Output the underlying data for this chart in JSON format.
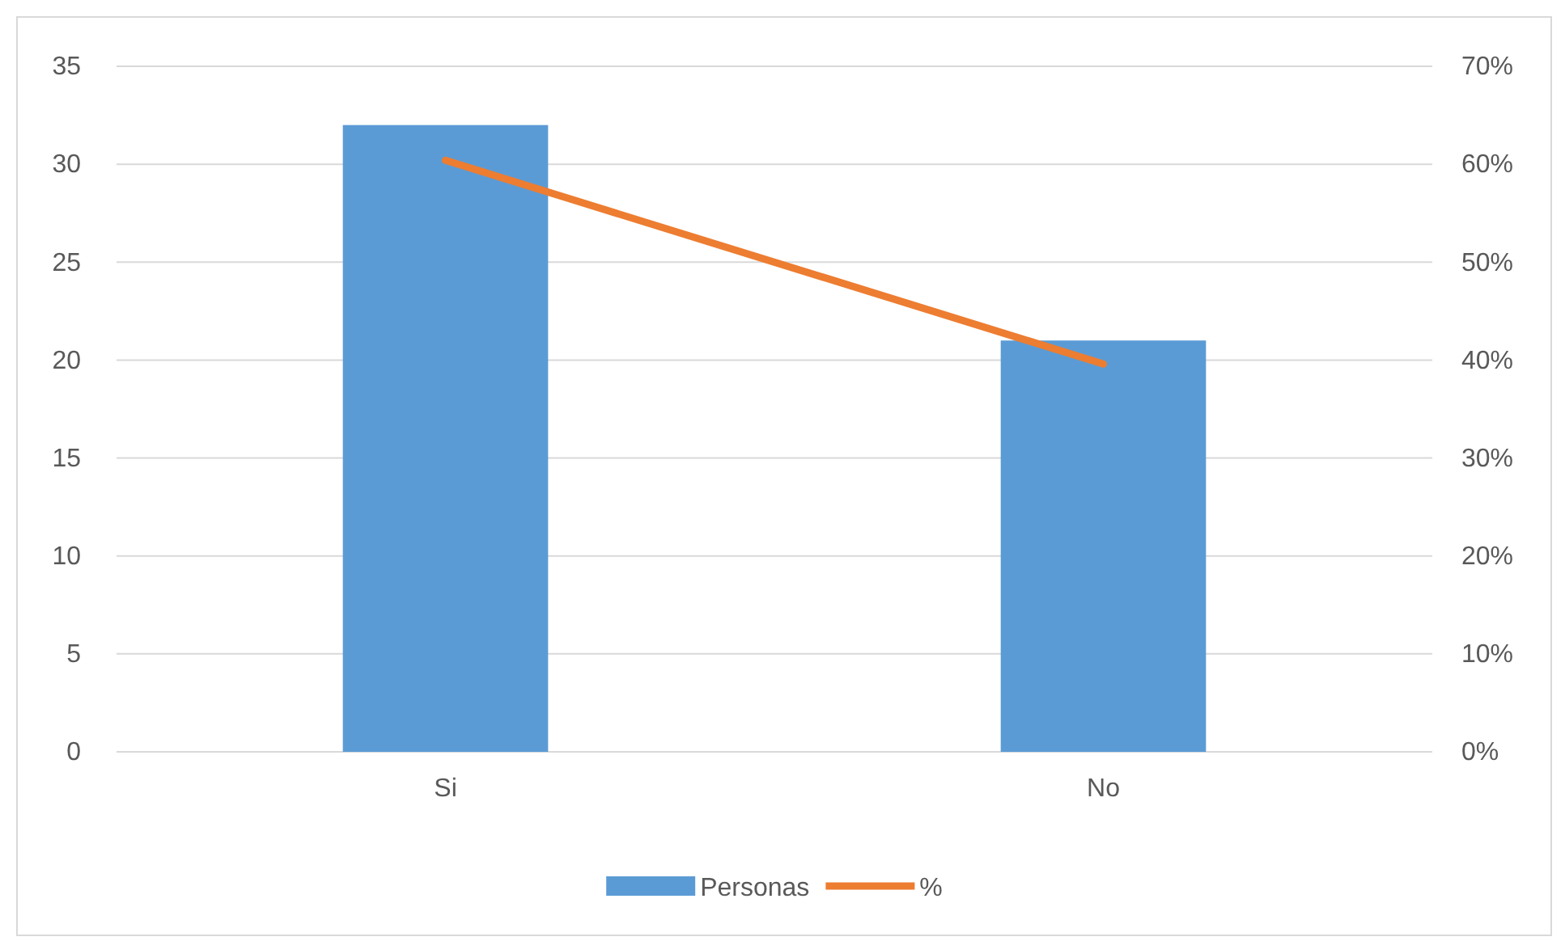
{
  "chart_data": {
    "type": "bar",
    "categories": [
      "Si",
      "No"
    ],
    "series": [
      {
        "name": "Personas",
        "color": "#5b9bd5",
        "values": [
          32,
          21
        ]
      },
      {
        "name": "%",
        "type": "line",
        "axis": "y2",
        "color": "#ed7d31",
        "values": [
          60.4,
          39.6
        ]
      }
    ],
    "ylim": [
      0,
      35
    ],
    "yticks": [
      0,
      5,
      10,
      15,
      20,
      25,
      30,
      35
    ],
    "y2lim": [
      0,
      70
    ],
    "y2ticks": [
      {
        "value": 0,
        "label": "0%"
      },
      {
        "value": 10,
        "label": "10%"
      },
      {
        "value": 20,
        "label": "20%"
      },
      {
        "value": 30,
        "label": "30%"
      },
      {
        "value": 40,
        "label": "40%"
      },
      {
        "value": 50,
        "label": "50%"
      },
      {
        "value": 60,
        "label": "60%"
      },
      {
        "value": 70,
        "label": "70%"
      }
    ],
    "grid": "y",
    "legend": "bottom",
    "marker": "none"
  }
}
